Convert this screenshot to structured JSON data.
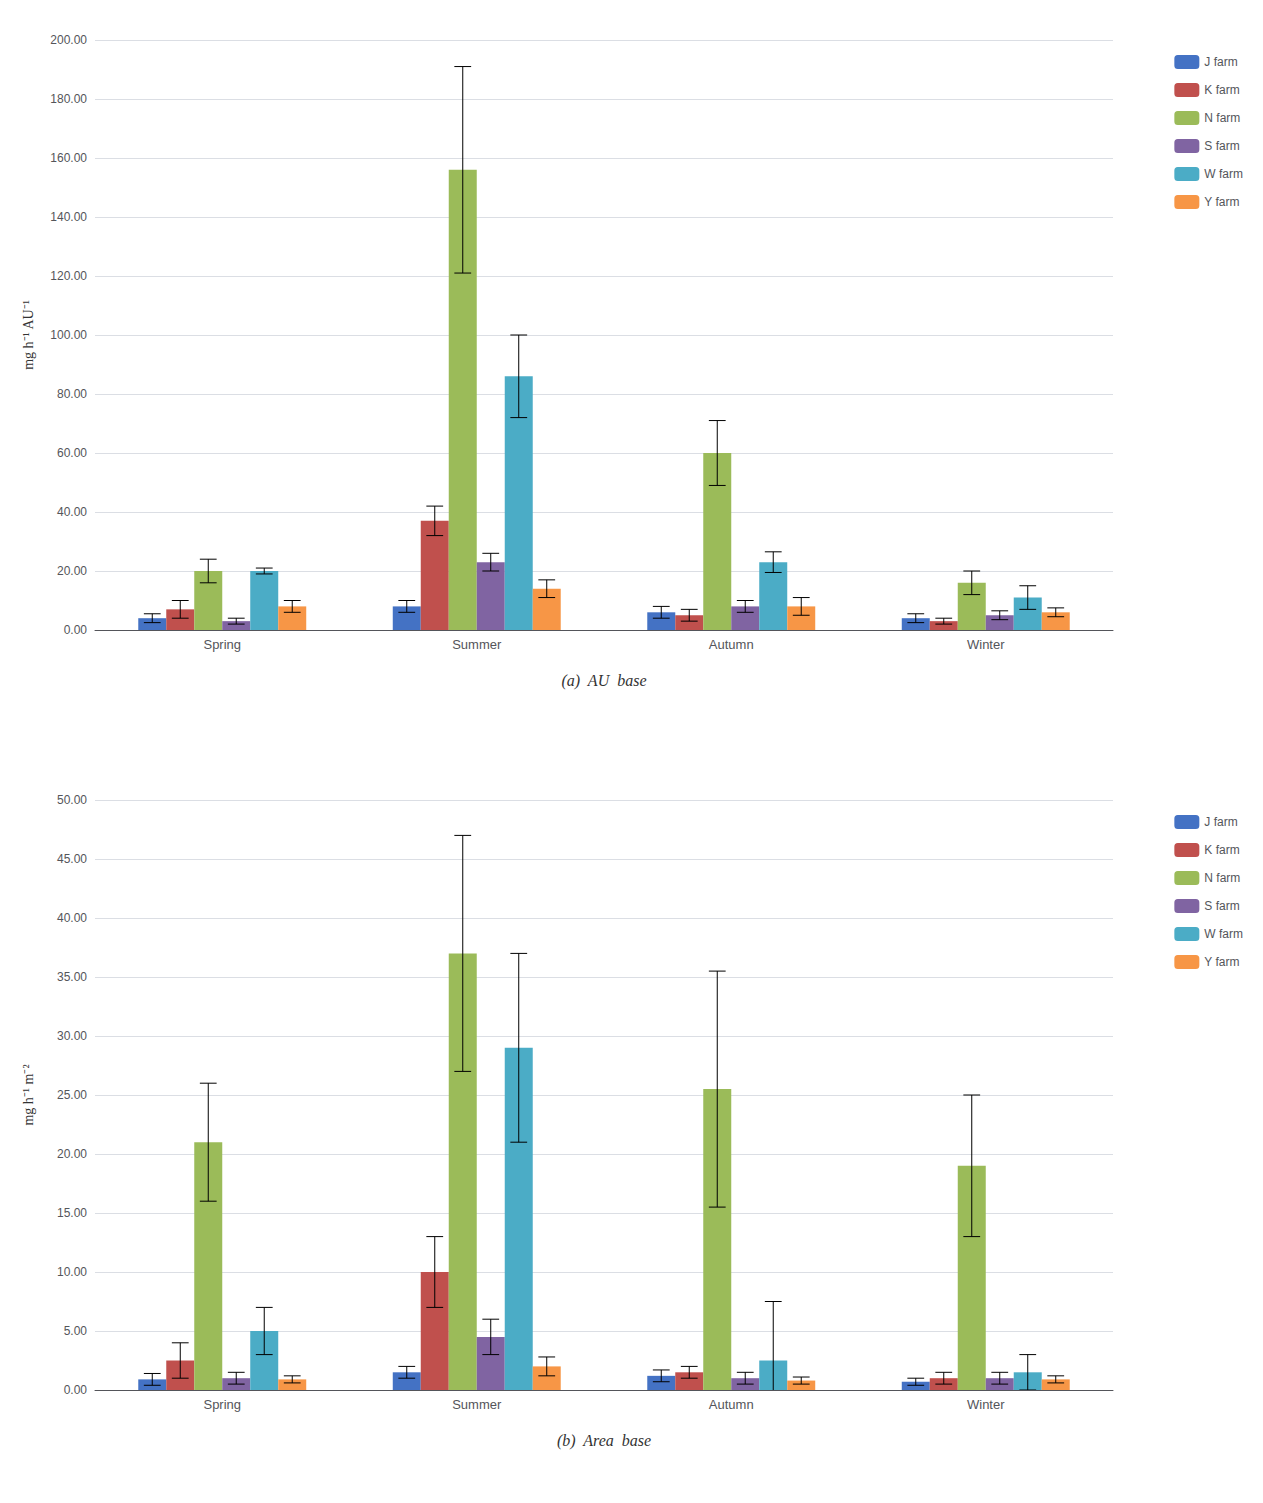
{
  "chart_data": [
    {
      "type": "bar",
      "xlabel": "(a)  AU  base",
      "ylabel": "mg h⁻¹ AU⁻¹",
      "categories": [
        "Spring",
        "Summer",
        "Autumn",
        "Winter"
      ],
      "series": [
        {
          "name": "J farm",
          "color": "#4472C4",
          "values": [
            4.0,
            8.0,
            6.0,
            4.0
          ],
          "errors": [
            1.5,
            2.0,
            2.0,
            1.5
          ]
        },
        {
          "name": "K farm",
          "color": "#C0504D",
          "values": [
            7.0,
            37.0,
            5.0,
            3.0
          ],
          "errors": [
            3.0,
            5.0,
            2.0,
            1.0
          ]
        },
        {
          "name": "N farm",
          "color": "#9BBB59",
          "values": [
            20.0,
            156.0,
            60.0,
            16.0
          ],
          "errors": [
            4.0,
            35.0,
            11.0,
            4.0
          ]
        },
        {
          "name": "S farm",
          "color": "#8064A2",
          "values": [
            3.0,
            23.0,
            8.0,
            5.0
          ],
          "errors": [
            1.0,
            3.0,
            2.0,
            1.5
          ]
        },
        {
          "name": "W farm",
          "color": "#4BACC6",
          "values": [
            20.0,
            86.0,
            23.0,
            11.0
          ],
          "errors": [
            1.0,
            14.0,
            3.5,
            4.0
          ]
        },
        {
          "name": "Y farm",
          "color": "#F79646",
          "values": [
            8.0,
            14.0,
            8.0,
            6.0
          ],
          "errors": [
            2.0,
            3.0,
            3.0,
            1.5
          ]
        }
      ],
      "ylim": [
        0,
        200
      ],
      "yticks": [
        {
          "value": 0,
          "label": "0.00"
        },
        {
          "value": 20,
          "label": "20.00"
        },
        {
          "value": 40,
          "label": "40.00"
        },
        {
          "value": 60,
          "label": "60.00"
        },
        {
          "value": 80,
          "label": "80.00"
        },
        {
          "value": 100,
          "label": "100.00"
        },
        {
          "value": 120,
          "label": "120.00"
        },
        {
          "value": 140,
          "label": "140.00"
        },
        {
          "value": 160,
          "label": "160.00"
        },
        {
          "value": 180,
          "label": "180.00"
        },
        {
          "value": 200,
          "label": "200.00"
        }
      ],
      "grid": true,
      "legend": "upper right"
    },
    {
      "type": "bar",
      "xlabel": "(b)  Area  base",
      "ylabel": "mg h⁻¹ m⁻²",
      "categories": [
        "Spring",
        "Summer",
        "Autumn",
        "Winter"
      ],
      "series": [
        {
          "name": "J farm",
          "color": "#4472C4",
          "values": [
            0.9,
            1.5,
            1.2,
            0.7
          ],
          "errors": [
            0.5,
            0.5,
            0.5,
            0.3
          ]
        },
        {
          "name": "K farm",
          "color": "#C0504D",
          "values": [
            2.5,
            10.0,
            1.5,
            1.0
          ],
          "errors": [
            1.5,
            3.0,
            0.5,
            0.5
          ]
        },
        {
          "name": "N farm",
          "color": "#9BBB59",
          "values": [
            21.0,
            37.0,
            25.5,
            19.0
          ],
          "errors": [
            5.0,
            10.0,
            10.0,
            6.0
          ]
        },
        {
          "name": "S farm",
          "color": "#8064A2",
          "values": [
            1.0,
            4.5,
            1.0,
            1.0
          ],
          "errors": [
            0.5,
            1.5,
            0.5,
            0.5
          ]
        },
        {
          "name": "W farm",
          "color": "#4BACC6",
          "values": [
            5.0,
            29.0,
            2.5,
            1.5
          ],
          "errors": [
            2.0,
            8.0,
            5.0,
            1.5
          ]
        },
        {
          "name": "Y farm",
          "color": "#F79646",
          "values": [
            0.9,
            2.0,
            0.8,
            0.9
          ],
          "errors": [
            0.3,
            0.8,
            0.3,
            0.3
          ]
        }
      ],
      "ylim": [
        0,
        50
      ],
      "yticks": [
        {
          "value": 0,
          "label": "0.00"
        },
        {
          "value": 5,
          "label": "5.00"
        },
        {
          "value": 10,
          "label": "10.00"
        },
        {
          "value": 15,
          "label": "15.00"
        },
        {
          "value": 20,
          "label": "20.00"
        },
        {
          "value": 25,
          "label": "25.00"
        },
        {
          "value": 30,
          "label": "30.00"
        },
        {
          "value": 35,
          "label": "35.00"
        },
        {
          "value": 40,
          "label": "40.00"
        },
        {
          "value": 45,
          "label": "45.00"
        },
        {
          "value": 50,
          "label": "50.00"
        }
      ],
      "grid": true,
      "legend": "upper right"
    }
  ]
}
